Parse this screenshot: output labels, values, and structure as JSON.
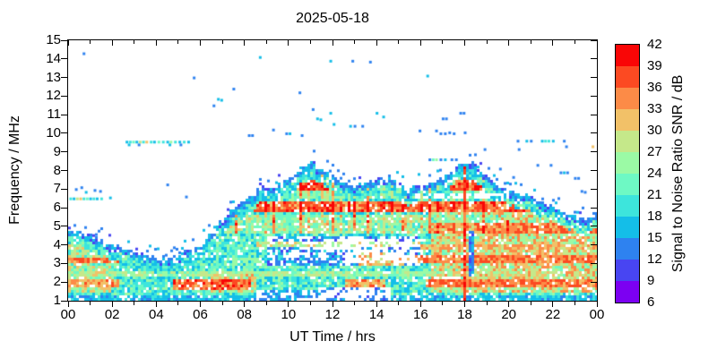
{
  "title": "2025-05-18",
  "axes": {
    "x": {
      "label": "UT Time / hrs",
      "min": 0,
      "max": 24,
      "major_ticks": [
        0,
        2,
        4,
        6,
        8,
        10,
        12,
        14,
        16,
        18,
        20,
        22,
        24
      ],
      "major_labels": [
        "00",
        "02",
        "04",
        "06",
        "08",
        "10",
        "12",
        "14",
        "16",
        "18",
        "20",
        "22",
        "00"
      ],
      "minor_ticks": [
        1,
        3,
        5,
        7,
        9,
        11,
        13,
        15,
        17,
        19,
        21,
        23
      ]
    },
    "y": {
      "label": "Frequency / MHz",
      "min": 1,
      "max": 15,
      "ticks": [
        1,
        2,
        3,
        4,
        5,
        6,
        7,
        8,
        9,
        10,
        11,
        12,
        13,
        14,
        15
      ],
      "tick_labels": [
        "1",
        "2",
        "3",
        "4",
        "5",
        "6",
        "7",
        "8",
        "9",
        "10",
        "11",
        "12",
        "13",
        "14",
        "15"
      ]
    }
  },
  "colorbar": {
    "label": "Signal to Noise Ratio SNR / dB",
    "min": 6,
    "max": 42,
    "ticks": [
      6,
      9,
      12,
      15,
      18,
      21,
      24,
      27,
      30,
      33,
      36,
      39,
      42
    ],
    "colors": [
      "#7C00F2",
      "#4845F2",
      "#2E82F0",
      "#14BEE8",
      "#3DE5DC",
      "#6EF9C4",
      "#9BFAA5",
      "#C5E88A",
      "#F2C168",
      "#FC8B47",
      "#FC4A22",
      "#F90606"
    ]
  },
  "chart_data": {
    "type": "heatmap",
    "title": "2025-05-18",
    "xlabel": "UT Time / hrs",
    "ylabel": "Frequency / MHz",
    "zlabel": "Signal to Noise Ratio SNR / dB",
    "xlim": [
      0,
      24
    ],
    "ylim": [
      1,
      15
    ],
    "zlim": [
      6,
      42
    ],
    "grid": false,
    "envelope": [
      [
        0,
        4.9
      ],
      [
        0.5,
        4.7
      ],
      [
        1,
        4.5
      ],
      [
        1.5,
        4.25
      ],
      [
        2,
        4.0
      ],
      [
        2.5,
        3.8
      ],
      [
        3,
        3.6
      ],
      [
        3.5,
        3.45
      ],
      [
        4,
        3.3
      ],
      [
        4.5,
        3.3
      ],
      [
        5,
        3.45
      ],
      [
        5.5,
        3.7
      ],
      [
        6,
        4.1
      ],
      [
        6.5,
        4.6
      ],
      [
        7,
        5.3
      ],
      [
        7.5,
        5.9
      ],
      [
        8,
        6.4
      ],
      [
        8.5,
        6.7
      ],
      [
        8.7,
        7.35
      ],
      [
        9,
        7.0
      ],
      [
        9.5,
        7.2
      ],
      [
        10,
        7.6
      ],
      [
        10.5,
        8.0
      ],
      [
        10.9,
        8.3
      ],
      [
        11.1,
        8.5
      ],
      [
        11.4,
        8.1
      ],
      [
        12,
        7.7
      ],
      [
        12.5,
        7.4
      ],
      [
        13,
        7.2
      ],
      [
        13.5,
        7.3
      ],
      [
        14,
        7.5
      ],
      [
        14.5,
        7.7
      ],
      [
        15,
        7.4
      ],
      [
        15.4,
        7.0
      ],
      [
        16,
        7.3
      ],
      [
        16.5,
        7.4
      ],
      [
        17,
        7.6
      ],
      [
        17.5,
        8.0
      ],
      [
        17.9,
        8.4
      ],
      [
        18.3,
        8.4
      ],
      [
        18.7,
        8.0
      ],
      [
        19,
        7.7
      ],
      [
        19.5,
        7.3
      ],
      [
        20,
        7.0
      ],
      [
        20.5,
        6.8
      ],
      [
        21,
        6.5
      ],
      [
        21.5,
        6.3
      ],
      [
        22,
        6.1
      ],
      [
        22.5,
        5.8
      ],
      [
        23,
        5.5
      ],
      [
        23.5,
        5.4
      ],
      [
        24,
        5.8
      ]
    ],
    "base_regions": [
      {
        "t": [
          16.5,
          24
        ],
        "f": [
          1.5,
          5.7
        ],
        "snr": [
          22,
          36
        ]
      },
      {
        "t": [
          0,
          2
        ],
        "f": [
          1.5,
          4.5
        ],
        "snr": [
          20,
          33
        ]
      },
      {
        "t": [
          7,
          19.5
        ],
        "f": [
          4.6,
          5.6
        ],
        "snr": [
          21,
          31
        ]
      },
      {
        "t": [
          5,
          8.5
        ],
        "f": [
          1.4,
          2.4
        ],
        "snr": [
          20,
          34
        ]
      },
      {
        "t": [
          2,
          6.5
        ],
        "f": [
          1.3,
          3.3
        ],
        "snr": [
          16,
          26
        ]
      }
    ],
    "bands": [
      {
        "t": [
          0,
          2.3
        ],
        "f": [
          1.65,
          2.15
        ],
        "snr": 33
      },
      {
        "t": [
          4.8,
          8.3
        ],
        "f": [
          1.6,
          2.1
        ],
        "snr": 36
      },
      {
        "t": [
          12.6,
          14.4
        ],
        "f": [
          1.75,
          2.1
        ],
        "snr": 33
      },
      {
        "t": [
          16.2,
          24
        ],
        "f": [
          1.65,
          2.15
        ],
        "snr": 35
      },
      {
        "t": [
          0,
          24
        ],
        "f": [
          2.3,
          2.6
        ],
        "snr": 26
      },
      {
        "t": [
          0,
          3.3
        ],
        "f": [
          2.95,
          3.35
        ],
        "snr": 35
      },
      {
        "t": [
          15.2,
          24
        ],
        "f": [
          2.95,
          3.4
        ],
        "snr": 35
      },
      {
        "t": [
          13.2,
          15.2
        ],
        "f": [
          2.85,
          3.6
        ],
        "snr": 32
      },
      {
        "t": [
          16,
          24
        ],
        "f": [
          3.75,
          4.1
        ],
        "snr": 32
      },
      {
        "t": [
          0,
          1.2
        ],
        "f": [
          3.7,
          4.05
        ],
        "snr": 29
      },
      {
        "t": [
          8.5,
          16
        ],
        "f": [
          3.85,
          4.15
        ],
        "snr": 28
      },
      {
        "t": [
          16.5,
          24
        ],
        "f": [
          4.6,
          5.15
        ],
        "snr": 35
      },
      {
        "t": [
          6.8,
          21.5
        ],
        "f": [
          5.75,
          6.3
        ],
        "snr": 37
      },
      {
        "t": [
          21.5,
          24
        ],
        "f": [
          5.3,
          5.9
        ],
        "snr": 33
      },
      {
        "t": [
          7.6,
          19.3
        ],
        "f": [
          6.9,
          7.5
        ],
        "snr": 37
      },
      {
        "t": [
          9.5,
          19
        ],
        "f": [
          6.55,
          6.9
        ],
        "snr": 24
      }
    ],
    "gaps": [
      {
        "t": [
          9,
          16
        ],
        "f": [
          2.85,
          4.5
        ],
        "density": 0.6,
        "snr": [
          11,
          19
        ]
      },
      {
        "t": [
          11.5,
          15.8
        ],
        "f": [
          2.95,
          4.3
        ],
        "density": 0.45
      },
      {
        "t": [
          11.3,
          14.6
        ],
        "f": [
          1.0,
          1.75
        ],
        "density": 0.3,
        "snr": [
          11,
          16
        ]
      },
      {
        "t": [
          8.5,
          11.3
        ],
        "f": [
          1.0,
          1.6
        ],
        "density": 0.6,
        "snr": [
          12,
          18
        ]
      },
      {
        "t": [
          15.8,
          20
        ],
        "f": [
          6.55,
          6.8
        ],
        "density": 0.3
      },
      {
        "t": [
          16,
          17.8
        ],
        "f": [
          2.1,
          2.3
        ],
        "density": 0.35
      }
    ],
    "events": [
      {
        "name": "strong-signal-column",
        "t": 18.02,
        "halfwidth": 0.09,
        "f": [
          1.0,
          8.2
        ],
        "snr": [
          35,
          42
        ]
      },
      {
        "name": "blue-fade-streak",
        "t": 18.3,
        "halfwidth": 0.09,
        "f": [
          2.3,
          4.75
        ],
        "snr": [
          11,
          16
        ]
      }
    ],
    "sporadic_points": [
      [
        2.65,
        9.55,
        15
      ],
      [
        2.8,
        9.55,
        18
      ],
      [
        2.95,
        9.55,
        21
      ],
      [
        3.1,
        9.55,
        15
      ],
      [
        3.25,
        9.55,
        27
      ],
      [
        3.4,
        9.55,
        18
      ],
      [
        3.55,
        9.55,
        30
      ],
      [
        3.75,
        9.55,
        18
      ],
      [
        3.9,
        9.55,
        15
      ],
      [
        4.1,
        9.55,
        21
      ],
      [
        4.3,
        9.55,
        18
      ],
      [
        4.5,
        9.55,
        15
      ],
      [
        4.65,
        9.55,
        24
      ],
      [
        4.85,
        9.55,
        18
      ],
      [
        5.05,
        9.55,
        15
      ],
      [
        5.25,
        9.55,
        18
      ],
      [
        5.45,
        9.55,
        15
      ],
      [
        2.75,
        9.4,
        15
      ],
      [
        3.2,
        9.4,
        12
      ],
      [
        4.6,
        9.4,
        15
      ],
      [
        5.1,
        9.4,
        12
      ],
      [
        0.1,
        6.5,
        18
      ],
      [
        0.25,
        6.5,
        15
      ],
      [
        0.4,
        6.5,
        27
      ],
      [
        0.55,
        6.5,
        30
      ],
      [
        0.7,
        6.5,
        18
      ],
      [
        0.85,
        6.5,
        21
      ],
      [
        1.0,
        6.5,
        15
      ],
      [
        1.15,
        6.5,
        18
      ],
      [
        1.3,
        6.5,
        15
      ],
      [
        1.5,
        6.5,
        18
      ],
      [
        1.9,
        6.55,
        15
      ],
      [
        0.35,
        7.0,
        12
      ],
      [
        0.6,
        7.1,
        12
      ],
      [
        0.8,
        6.85,
        15
      ],
      [
        1.2,
        6.95,
        12
      ],
      [
        1.45,
        6.9,
        12
      ],
      [
        0.7,
        14.3,
        12
      ],
      [
        4.5,
        7.25,
        12
      ],
      [
        5.35,
        6.6,
        12
      ],
      [
        5.7,
        13.0,
        12
      ],
      [
        6.6,
        11.5,
        12
      ],
      [
        6.8,
        11.85,
        15
      ],
      [
        6.95,
        11.8,
        15
      ],
      [
        7.5,
        12.4,
        12
      ],
      [
        8.2,
        9.9,
        12
      ],
      [
        8.35,
        9.9,
        12
      ],
      [
        8.7,
        14.1,
        15
      ],
      [
        9.3,
        10.2,
        12
      ],
      [
        9.9,
        10.0,
        12
      ],
      [
        10.05,
        10.0,
        15
      ],
      [
        10.6,
        9.9,
        12
      ],
      [
        10.5,
        12.2,
        12
      ],
      [
        11.1,
        11.3,
        12
      ],
      [
        11.3,
        10.8,
        15
      ],
      [
        11.45,
        10.75,
        15
      ],
      [
        11.9,
        11.1,
        15
      ],
      [
        11.9,
        13.9,
        15
      ],
      [
        12.05,
        10.5,
        15
      ],
      [
        12.8,
        10.4,
        15
      ],
      [
        13.0,
        10.4,
        12
      ],
      [
        13.35,
        10.4,
        12
      ],
      [
        12.9,
        13.9,
        12
      ],
      [
        13.7,
        13.85,
        12
      ],
      [
        14.0,
        11.1,
        15
      ],
      [
        14.3,
        10.9,
        15
      ],
      [
        16.3,
        13.1,
        15
      ],
      [
        15.95,
        10.15,
        12
      ],
      [
        16.7,
        10.15,
        12
      ],
      [
        16.9,
        10.0,
        12
      ],
      [
        17.1,
        10.0,
        12
      ],
      [
        17.3,
        10.05,
        12
      ],
      [
        17.5,
        10.0,
        12
      ],
      [
        18.0,
        10.05,
        12
      ],
      [
        17.8,
        11.1,
        12
      ],
      [
        17.95,
        11.1,
        12
      ],
      [
        17.0,
        10.8,
        12
      ],
      [
        17.15,
        10.8,
        12
      ],
      [
        18.9,
        9.15,
        12
      ],
      [
        20.4,
        9.6,
        12
      ],
      [
        20.45,
        9.15,
        12
      ],
      [
        20.8,
        9.6,
        15
      ],
      [
        21.0,
        9.6,
        12
      ],
      [
        21.5,
        9.6,
        15
      ],
      [
        21.65,
        9.6,
        18
      ],
      [
        21.8,
        9.6,
        18
      ],
      [
        22.0,
        9.6,
        15
      ],
      [
        22.5,
        9.6,
        12
      ],
      [
        22.6,
        9.3,
        12
      ],
      [
        23.8,
        9.3,
        31
      ],
      [
        16.4,
        8.6,
        12
      ],
      [
        16.55,
        8.6,
        21
      ],
      [
        16.7,
        8.6,
        24
      ],
      [
        16.9,
        8.6,
        12
      ],
      [
        17.1,
        8.6,
        15
      ],
      [
        17.4,
        8.6,
        12
      ],
      [
        17.6,
        8.6,
        12
      ],
      [
        21.3,
        8.3,
        12
      ],
      [
        21.9,
        8.3,
        12
      ],
      [
        22.35,
        7.9,
        12
      ],
      [
        22.5,
        7.9,
        15
      ],
      [
        22.65,
        7.9,
        12
      ],
      [
        23.0,
        7.6,
        12
      ],
      [
        23.15,
        7.6,
        12
      ],
      [
        23.3,
        6.9,
        12
      ],
      [
        23.45,
        6.85,
        12
      ],
      [
        20.2,
        7.65,
        12
      ],
      [
        19.6,
        8.1,
        12
      ]
    ]
  }
}
